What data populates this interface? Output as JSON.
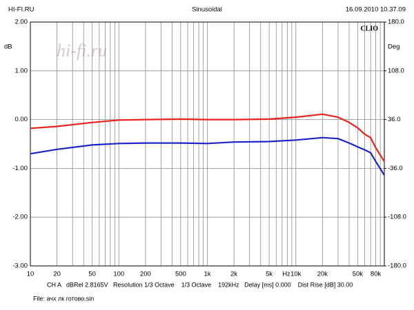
{
  "chart_data": {
    "type": "line",
    "header_left": "HI-FI.RU",
    "title": "Sinusoidal",
    "header_right": "16.09.2010 10.37.09",
    "watermark": "hi-fi.ru",
    "brand": "CLIO",
    "y_label": "dB",
    "y2_label": "Deg",
    "x_label": "Hz",
    "x": [
      10,
      20,
      50,
      100,
      200,
      500,
      1000,
      2000,
      5000,
      10000,
      20000,
      30000,
      40000,
      50000,
      60000,
      70000,
      80000,
      100000
    ],
    "series": [
      {
        "color": "#e8231b",
        "values": [
          -0.18,
          -0.14,
          -0.06,
          -0.01,
          0,
          0.01,
          0,
          0,
          0.01,
          0.05,
          0.11,
          0.05,
          -0.06,
          -0.17,
          -0.3,
          -0.37,
          -0.58,
          -0.86
        ]
      },
      {
        "color": "#1c22c8",
        "values": [
          -0.7,
          -0.61,
          -0.52,
          -0.49,
          -0.48,
          -0.48,
          -0.49,
          -0.46,
          -0.45,
          -0.42,
          -0.37,
          -0.39,
          -0.48,
          -0.56,
          -0.62,
          -0.68,
          -0.86,
          -1.14
        ]
      }
    ],
    "xlog": true,
    "xlim": [
      10,
      100000
    ],
    "xticks": [
      10,
      20,
      50,
      100,
      200,
      500,
      {
        "value": 1000,
        "label": "1k"
      },
      {
        "value": 2000,
        "label": "2k"
      },
      {
        "value": 5000,
        "label": "5k"
      },
      {
        "value": 10000,
        "label": "10k"
      },
      {
        "value": 20000,
        "label": "20k"
      },
      {
        "value": 50000,
        "label": "50k"
      },
      {
        "value": 80000,
        "label": "80k"
      }
    ],
    "x_grid": [
      20,
      30,
      40,
      50,
      60,
      70,
      80,
      90,
      100,
      200,
      300,
      400,
      500,
      600,
      700,
      800,
      900,
      1000,
      2000,
      3000,
      4000,
      5000,
      6000,
      7000,
      8000,
      9000,
      10000,
      20000,
      30000,
      40000,
      50000,
      60000,
      70000,
      80000,
      90000
    ],
    "ylim": [
      -3,
      2
    ],
    "yticks": [
      {
        "value": 2,
        "label": "2.00"
      },
      {
        "value": 1,
        "label": "1.00"
      },
      {
        "value": 0,
        "label": "0.00"
      },
      {
        "value": -1,
        "label": "-1.00"
      },
      {
        "value": -2,
        "label": "-2.00"
      },
      {
        "value": -3,
        "label": "-3.00"
      }
    ],
    "y2lim": [
      -180,
      180
    ],
    "y2ticks": [
      {
        "value": 180,
        "label": "180.0"
      },
      {
        "value": 108,
        "label": "108.0"
      },
      {
        "value": 36,
        "label": "36.0"
      },
      {
        "value": -36,
        "label": "-36.0"
      },
      {
        "value": -108,
        "label": "-108.0"
      },
      {
        "value": -180,
        "label": "-180.0"
      }
    ],
    "grid": true,
    "footer": [
      "CH A   dBRel 2.8165V   Resolution 1/3 Octave    1/3 Octave    192kHz   Delay [ms] 0.000    Dist Rise [dB] 30.00",
      "File: ачх лк готово.sin"
    ]
  }
}
